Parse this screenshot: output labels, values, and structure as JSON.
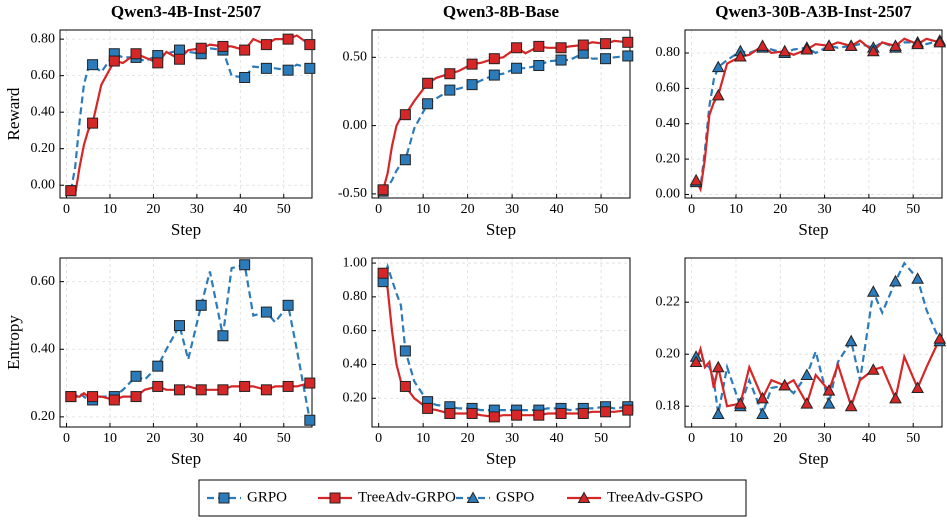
{
  "chart_data": [
    {
      "type": "line",
      "title": "Qwen3-4B-Inst-2507",
      "xlabel": "Step",
      "ylabel": "Reward",
      "x": [
        1,
        2,
        3,
        4,
        5,
        6,
        8,
        11,
        13,
        16,
        18,
        21,
        23,
        26,
        28,
        31,
        33,
        36,
        38,
        41,
        43,
        46,
        48,
        51,
        53,
        56
      ],
      "xlim": [
        -1.5,
        56.5
      ],
      "xticks": [
        0,
        10,
        20,
        30,
        40,
        50
      ],
      "ylim": [
        -0.07,
        0.85
      ],
      "yticks": [
        {
          "value": 0,
          "label": "0.00"
        },
        {
          "value": 0.2,
          "label": "0.20"
        },
        {
          "value": 0.4,
          "label": "0.40"
        },
        {
          "value": 0.6,
          "label": "0.60"
        },
        {
          "value": 0.8,
          "label": "0.80"
        }
      ],
      "grid": true,
      "series": [
        {
          "name": "GRPO",
          "color": "#2b7bba",
          "linestyle": "dashed",
          "marker": "square",
          "values": [
            -0.03,
            0.1,
            0.35,
            0.55,
            0.64,
            0.66,
            0.62,
            0.72,
            0.7,
            0.7,
            0.68,
            0.71,
            0.72,
            0.74,
            0.73,
            0.72,
            0.75,
            0.74,
            0.6,
            0.59,
            0.65,
            0.64,
            0.64,
            0.63,
            0.66,
            0.64
          ]
        },
        {
          "name": "TreeAdv-GRPO",
          "color": "#d62728",
          "linestyle": "solid",
          "marker": "square",
          "values": [
            -0.03,
            -0.05,
            0.1,
            0.22,
            0.3,
            0.34,
            0.55,
            0.68,
            0.67,
            0.72,
            0.7,
            0.67,
            0.73,
            0.69,
            0.74,
            0.75,
            0.77,
            0.76,
            0.76,
            0.74,
            0.8,
            0.77,
            0.8,
            0.8,
            0.82,
            0.77
          ]
        }
      ]
    },
    {
      "type": "line",
      "title": "Qwen3-8B-Base",
      "xlabel": "Step",
      "x": [
        1,
        2,
        3,
        4,
        5,
        6,
        8,
        11,
        13,
        16,
        18,
        21,
        23,
        26,
        28,
        31,
        33,
        36,
        38,
        41,
        43,
        46,
        48,
        51,
        53,
        56
      ],
      "xlim": [
        -1.5,
        56.5
      ],
      "xticks": [
        0,
        10,
        20,
        30,
        40,
        50
      ],
      "ylim": [
        -0.53,
        0.7
      ],
      "yticks": [
        {
          "value": -0.5,
          "label": "-0.50"
        },
        {
          "value": 0,
          "label": "0.00"
        },
        {
          "value": 0.5,
          "label": "0.50"
        }
      ],
      "grid": true,
      "series": [
        {
          "name": "GRPO",
          "color": "#2b7bba",
          "linestyle": "dashed",
          "marker": "square",
          "values": [
            -0.48,
            -0.45,
            -0.4,
            -0.33,
            -0.28,
            -0.25,
            -0.02,
            0.16,
            0.2,
            0.26,
            0.27,
            0.3,
            0.33,
            0.37,
            0.38,
            0.42,
            0.42,
            0.44,
            0.47,
            0.48,
            0.48,
            0.53,
            0.49,
            0.49,
            0.5,
            0.51
          ]
        },
        {
          "name": "TreeAdv-GRPO",
          "color": "#d62728",
          "linestyle": "solid",
          "marker": "square",
          "values": [
            -0.47,
            -0.35,
            -0.15,
            0.0,
            0.06,
            0.08,
            0.18,
            0.31,
            0.35,
            0.38,
            0.4,
            0.45,
            0.46,
            0.49,
            0.5,
            0.57,
            0.53,
            0.58,
            0.57,
            0.57,
            0.58,
            0.59,
            0.61,
            0.6,
            0.62,
            0.61
          ]
        }
      ]
    },
    {
      "type": "line",
      "title": "Qwen3-30B-A3B-Inst-2507",
      "xlabel": "Step",
      "x": [
        1,
        2,
        3,
        4,
        5,
        6,
        8,
        11,
        13,
        16,
        18,
        21,
        23,
        26,
        28,
        31,
        33,
        36,
        38,
        41,
        43,
        46,
        48,
        51,
        53,
        56
      ],
      "xlim": [
        -1.5,
        56.5
      ],
      "xticks": [
        0,
        10,
        20,
        30,
        40,
        50
      ],
      "ylim": [
        -0.02,
        0.93
      ],
      "yticks": [
        {
          "value": 0,
          "label": "0.00"
        },
        {
          "value": 0.2,
          "label": "0.20"
        },
        {
          "value": 0.4,
          "label": "0.40"
        },
        {
          "value": 0.6,
          "label": "0.60"
        },
        {
          "value": 0.8,
          "label": "0.80"
        }
      ],
      "grid": true,
      "series": [
        {
          "name": "GSPO",
          "color": "#2b7bba",
          "linestyle": "dashed",
          "marker": "triangle",
          "values": [
            0.07,
            0.04,
            0.25,
            0.5,
            0.65,
            0.72,
            0.76,
            0.81,
            0.8,
            0.83,
            0.82,
            0.8,
            0.82,
            0.83,
            0.8,
            0.84,
            0.83,
            0.84,
            0.85,
            0.83,
            0.86,
            0.83,
            0.86,
            0.86,
            0.85,
            0.87
          ]
        },
        {
          "name": "TreeAdv-GSPO",
          "color": "#d62728",
          "linestyle": "solid",
          "marker": "triangle",
          "values": [
            0.08,
            0.03,
            0.2,
            0.45,
            0.52,
            0.56,
            0.74,
            0.78,
            0.79,
            0.84,
            0.8,
            0.81,
            0.79,
            0.82,
            0.85,
            0.84,
            0.86,
            0.84,
            0.87,
            0.81,
            0.86,
            0.84,
            0.88,
            0.85,
            0.88,
            0.86
          ]
        }
      ]
    },
    {
      "type": "line",
      "xlabel": "Step",
      "ylabel": "Entropy",
      "x": [
        1,
        2,
        3,
        4,
        5,
        6,
        8,
        11,
        13,
        16,
        18,
        21,
        23,
        26,
        28,
        31,
        33,
        36,
        38,
        41,
        43,
        46,
        48,
        51,
        53,
        56
      ],
      "xlim": [
        -1.5,
        56.5
      ],
      "xticks": [
        0,
        10,
        20,
        30,
        40,
        50
      ],
      "ylim": [
        0.17,
        0.67
      ],
      "yticks": [
        {
          "value": 0.2,
          "label": "0.20"
        },
        {
          "value": 0.4,
          "label": "0.40"
        },
        {
          "value": 0.6,
          "label": "0.60"
        }
      ],
      "grid": true,
      "series": [
        {
          "name": "GRPO",
          "color": "#2b7bba",
          "linestyle": "dashed",
          "marker": "square",
          "values": [
            0.26,
            0.26,
            0.27,
            0.26,
            0.25,
            0.25,
            0.26,
            0.26,
            0.28,
            0.32,
            0.31,
            0.35,
            0.4,
            0.47,
            0.37,
            0.53,
            0.63,
            0.44,
            0.64,
            0.65,
            0.5,
            0.51,
            0.48,
            0.53,
            0.4,
            0.19
          ]
        },
        {
          "name": "TreeAdv-GRPO",
          "color": "#d62728",
          "linestyle": "solid",
          "marker": "square",
          "values": [
            0.26,
            0.26,
            0.26,
            0.27,
            0.26,
            0.26,
            0.26,
            0.25,
            0.26,
            0.26,
            0.28,
            0.29,
            0.28,
            0.28,
            0.29,
            0.28,
            0.28,
            0.28,
            0.29,
            0.29,
            0.29,
            0.28,
            0.29,
            0.29,
            0.29,
            0.3
          ]
        }
      ]
    },
    {
      "type": "line",
      "xlabel": "Step",
      "x": [
        1,
        2,
        3,
        4,
        5,
        6,
        8,
        11,
        13,
        16,
        18,
        21,
        23,
        26,
        28,
        31,
        33,
        36,
        38,
        41,
        43,
        46,
        48,
        51,
        53,
        56
      ],
      "xlim": [
        -1.5,
        56.5
      ],
      "xticks": [
        0,
        10,
        20,
        30,
        40,
        50
      ],
      "ylim": [
        0.03,
        1.03
      ],
      "yticks": [
        {
          "value": 0.2,
          "label": "0.20"
        },
        {
          "value": 0.4,
          "label": "0.40"
        },
        {
          "value": 0.6,
          "label": "0.60"
        },
        {
          "value": 0.8,
          "label": "0.80"
        },
        {
          "value": 1,
          "label": "1.00"
        }
      ],
      "grid": true,
      "series": [
        {
          "name": "GRPO",
          "color": "#2b7bba",
          "linestyle": "dashed",
          "marker": "square",
          "values": [
            0.89,
            0.98,
            0.9,
            0.82,
            0.75,
            0.48,
            0.3,
            0.18,
            0.16,
            0.15,
            0.14,
            0.14,
            0.13,
            0.13,
            0.13,
            0.13,
            0.13,
            0.13,
            0.14,
            0.14,
            0.13,
            0.14,
            0.14,
            0.15,
            0.14,
            0.15
          ]
        },
        {
          "name": "TreeAdv-GRPO",
          "color": "#d62728",
          "linestyle": "solid",
          "marker": "square",
          "values": [
            0.94,
            0.85,
            0.6,
            0.4,
            0.3,
            0.27,
            0.2,
            0.14,
            0.13,
            0.11,
            0.11,
            0.11,
            0.1,
            0.09,
            0.1,
            0.1,
            0.1,
            0.1,
            0.11,
            0.11,
            0.11,
            0.11,
            0.12,
            0.12,
            0.12,
            0.13
          ]
        }
      ]
    },
    {
      "type": "line",
      "xlabel": "Step",
      "x": [
        1,
        2,
        3,
        4,
        5,
        6,
        8,
        11,
        13,
        16,
        18,
        21,
        23,
        26,
        28,
        31,
        33,
        36,
        38,
        41,
        43,
        46,
        48,
        51,
        53,
        56
      ],
      "xlim": [
        -1.5,
        56.5
      ],
      "xticks": [
        0,
        10,
        20,
        30,
        40,
        50
      ],
      "ylim": [
        0.172,
        0.237
      ],
      "yticks": [
        {
          "value": 0.18,
          "label": "0.18"
        },
        {
          "value": 0.2,
          "label": "0.20"
        },
        {
          "value": 0.22,
          "label": "0.22"
        }
      ],
      "grid": true,
      "series": [
        {
          "name": "GSPO",
          "color": "#2b7bba",
          "linestyle": "dashed",
          "marker": "triangle",
          "values": [
            0.199,
            0.201,
            0.196,
            0.195,
            0.19,
            0.177,
            0.195,
            0.18,
            0.19,
            0.177,
            0.187,
            0.188,
            0.185,
            0.192,
            0.201,
            0.181,
            0.197,
            0.205,
            0.19,
            0.224,
            0.216,
            0.228,
            0.235,
            0.229,
            0.217,
            0.205
          ]
        },
        {
          "name": "TreeAdv-GSPO",
          "color": "#d62728",
          "linestyle": "solid",
          "marker": "triangle",
          "values": [
            0.197,
            0.202,
            0.195,
            0.197,
            0.187,
            0.195,
            0.18,
            0.181,
            0.195,
            0.183,
            0.19,
            0.188,
            0.19,
            0.181,
            0.192,
            0.186,
            0.196,
            0.18,
            0.19,
            0.194,
            0.195,
            0.183,
            0.199,
            0.187,
            0.195,
            0.206
          ]
        }
      ]
    }
  ]
}
